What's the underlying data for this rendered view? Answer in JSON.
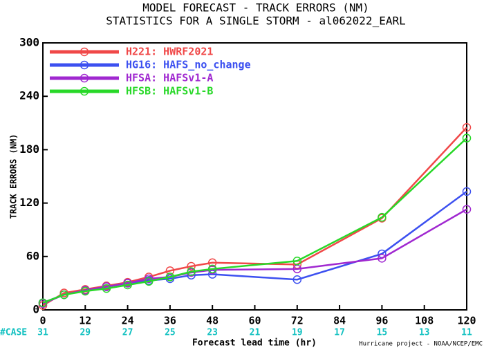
{
  "chart_data": {
    "type": "line",
    "title": "MODEL FORECAST - TRACK ERRORS (NM)",
    "subtitle": "STATISTICS FOR A SINGLE STORM - al062022_EARL",
    "xlabel": "Forecast lead time (hr)",
    "ylabel": "TRACK ERRORS (NM)",
    "x": [
      0,
      6,
      12,
      18,
      24,
      30,
      36,
      42,
      48,
      72,
      96,
      120
    ],
    "series": [
      {
        "name": "H221: HWRF2021",
        "color": "#f04848",
        "values": [
          5,
          19,
          23,
          27,
          31,
          37,
          44,
          49,
          53,
          51,
          103,
          205
        ]
      },
      {
        "name": "HG16: HAFS_no_change",
        "color": "#3c50f0",
        "values": [
          8,
          17,
          22,
          26,
          30,
          33,
          35,
          39,
          40,
          34,
          63,
          133
        ]
      },
      {
        "name": "HFSA: HAFSv1-A",
        "color": "#a028d0",
        "values": [
          7,
          17,
          22,
          26,
          30,
          35,
          37,
          42,
          45,
          46,
          58,
          113
        ]
      },
      {
        "name": "HFSB: HAFSv1-B",
        "color": "#28d828",
        "values": [
          8,
          17,
          21,
          24,
          28,
          32,
          37,
          43,
          46,
          55,
          104,
          193
        ]
      }
    ],
    "xlim": [
      0,
      120
    ],
    "xticks": [
      0,
      12,
      24,
      36,
      48,
      60,
      72,
      84,
      96,
      108,
      120
    ],
    "ylim": [
      0,
      300
    ],
    "yticks": [
      0,
      60,
      120,
      180,
      240,
      300
    ],
    "case_label": "#CASE",
    "case_x": [
      0,
      12,
      24,
      36,
      48,
      60,
      72,
      84,
      96,
      108,
      120
    ],
    "case_counts": [
      31,
      29,
      27,
      25,
      23,
      21,
      19,
      17,
      15,
      13,
      11
    ],
    "case_color": "#10c0c0",
    "legend": "upper left",
    "footer": "Hurricane project - NOAA/NCEP/EMC"
  }
}
